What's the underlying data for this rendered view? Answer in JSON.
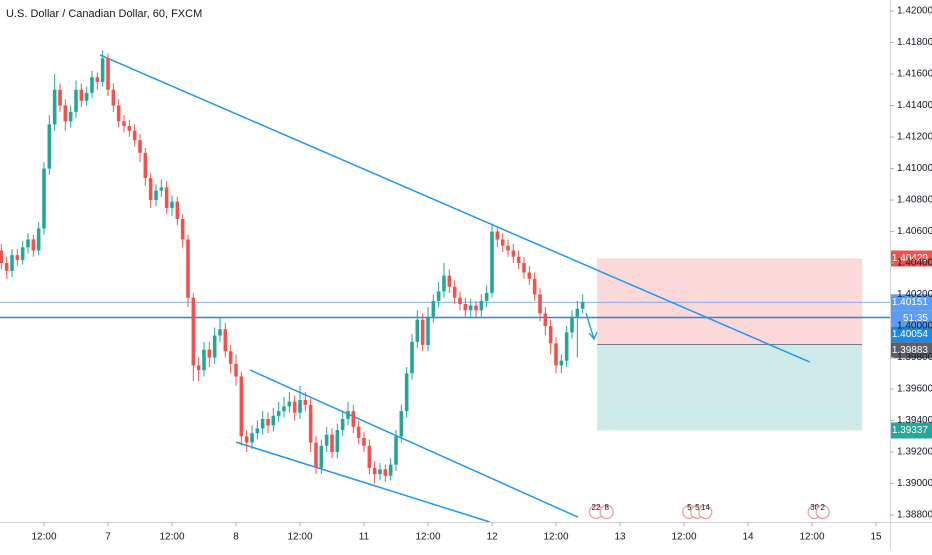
{
  "chart_data": {
    "type": "candlestick",
    "title": "U.S. Dollar / Canadian Dollar, 60, FXCM",
    "up_color": "#26a69a",
    "down_color": "#ef5350",
    "grid": true,
    "xlim": [
      -0.25,
      166.625
    ],
    "xticks": [
      {
        "value": 8,
        "label": "12:00"
      },
      {
        "value": 20,
        "label": "7"
      },
      {
        "value": 32,
        "label": "12:00"
      },
      {
        "value": 44,
        "label": "8"
      },
      {
        "value": 56,
        "label": "12:00"
      },
      {
        "value": 68,
        "label": "11"
      },
      {
        "value": 80,
        "label": "12:00"
      },
      {
        "value": 92,
        "label": "12"
      },
      {
        "value": 104,
        "label": "12:00"
      },
      {
        "value": 116,
        "label": "13"
      },
      {
        "value": 128,
        "label": "12:00"
      },
      {
        "value": 140,
        "label": "14"
      },
      {
        "value": 152,
        "label": "12:00"
      },
      {
        "value": 164,
        "label": "15"
      }
    ],
    "ylim": [
      1.38756,
      1.4207
    ],
    "yticks": [
      {
        "value": 1.388,
        "label": "1.38800"
      },
      {
        "value": 1.39,
        "label": "1.39000"
      },
      {
        "value": 1.392,
        "label": "1.39200"
      },
      {
        "value": 1.394,
        "label": "1.39400"
      },
      {
        "value": 1.396,
        "label": "1.39600"
      },
      {
        "value": 1.398,
        "label": "1.39800"
      },
      {
        "value": 1.4,
        "label": "1.40000"
      },
      {
        "value": 1.402,
        "label": "1.40200"
      },
      {
        "value": 1.404,
        "label": "1.40400"
      },
      {
        "value": 1.406,
        "label": "1.40600"
      },
      {
        "value": 1.408,
        "label": "1.40800"
      },
      {
        "value": 1.41,
        "label": "1.41000"
      },
      {
        "value": 1.412,
        "label": "1.41200"
      },
      {
        "value": 1.414,
        "label": "1.41400"
      },
      {
        "value": 1.416,
        "label": "1.41600"
      },
      {
        "value": 1.418,
        "label": "1.41800"
      },
      {
        "value": 1.42,
        "label": "1.42000"
      }
    ],
    "open": [
      1.4048,
      1.404,
      1.4035,
      1.4045,
      1.4042,
      1.405,
      1.4055,
      1.4048,
      1.4062,
      1.41,
      1.4128,
      1.415,
      1.414,
      1.413,
      1.4136,
      1.415,
      1.4143,
      1.4148,
      1.4158,
      1.4155,
      1.417,
      1.415,
      1.414,
      1.413,
      1.4127,
      1.4124,
      1.4118,
      1.411,
      1.4094,
      1.408,
      1.4086,
      1.4088,
      1.4075,
      1.4079,
      1.4068,
      1.4055,
      1.4018,
      1.3975,
      1.3972,
      1.3985,
      1.398,
      1.3994,
      1.3998,
      1.3984,
      1.3976,
      1.3968,
      1.393,
      1.3926,
      1.3932,
      1.3935,
      1.3941,
      1.3937,
      1.3943,
      1.3946,
      1.3949,
      1.3952,
      1.3945,
      1.3953,
      1.395,
      1.3926,
      1.391,
      1.3924,
      1.3931,
      1.392,
      1.3934,
      1.3941,
      1.3946,
      1.3936,
      1.3929,
      1.3924,
      1.391,
      1.3906,
      1.3909,
      1.3905,
      1.3912,
      1.393,
      1.3946,
      1.397,
      1.399,
      1.4004,
      1.3988,
      1.4006,
      1.4016,
      1.4022,
      1.4032,
      1.4025,
      1.4018,
      1.4014,
      1.401,
      1.4013,
      1.401,
      1.4016,
      1.4021,
      1.406,
      1.4055,
      1.4051,
      1.4048,
      1.4044,
      1.404,
      1.4034,
      1.403,
      1.402,
      1.4008,
      1.4,
      1.3989,
      1.3975,
      1.3978,
      1.3996,
      1.4006,
      1.4011
    ],
    "high": [
      1.4052,
      1.4044,
      1.4049,
      1.4049,
      1.4054,
      1.4059,
      1.4058,
      1.4066,
      1.4104,
      1.4134,
      1.416,
      1.4154,
      1.4144,
      1.414,
      1.4156,
      1.4154,
      1.4152,
      1.4162,
      1.4161,
      1.4175,
      1.4173,
      1.4154,
      1.4144,
      1.4134,
      1.4131,
      1.4128,
      1.4122,
      1.4113,
      1.4097,
      1.409,
      1.4093,
      1.4092,
      1.4083,
      1.4082,
      1.4071,
      1.4058,
      1.4021,
      1.398,
      1.399,
      1.399,
      1.3999,
      1.4005,
      1.4002,
      1.3988,
      1.3982,
      1.3971,
      1.3934,
      1.3937,
      1.394,
      1.3946,
      1.3945,
      1.3948,
      1.3952,
      1.3955,
      1.3958,
      1.3956,
      1.3962,
      1.3958,
      1.3954,
      1.393,
      1.3928,
      1.3936,
      1.3935,
      1.3938,
      1.3946,
      1.3952,
      1.395,
      1.394,
      1.3933,
      1.3928,
      1.3914,
      1.3913,
      1.3912,
      1.3916,
      1.3934,
      1.395,
      1.3974,
      1.3995,
      1.401,
      1.4008,
      1.4012,
      1.402,
      1.4028,
      1.404,
      1.4036,
      1.4029,
      1.4022,
      1.4018,
      1.4017,
      1.4016,
      1.402,
      1.4026,
      1.4065,
      1.4063,
      1.4059,
      1.4055,
      1.4052,
      1.4048,
      1.4044,
      1.4038,
      1.4034,
      1.4024,
      1.4012,
      1.4004,
      1.3993,
      1.3982,
      1.4,
      1.401,
      1.4016,
      1.402
    ],
    "low": [
      1.4036,
      1.403,
      1.4031,
      1.4038,
      1.4039,
      1.4046,
      1.4044,
      1.4045,
      1.4058,
      1.4096,
      1.4124,
      1.4136,
      1.4124,
      1.4126,
      1.4132,
      1.4139,
      1.414,
      1.4145,
      1.415,
      1.4152,
      1.4146,
      1.4136,
      1.4126,
      1.4123,
      1.412,
      1.4114,
      1.4104,
      1.4089,
      1.4075,
      1.4076,
      1.4082,
      1.4071,
      1.407,
      1.4064,
      1.405,
      1.4012,
      1.3965,
      1.3965,
      1.3968,
      1.3974,
      1.3976,
      1.399,
      1.398,
      1.397,
      1.3962,
      1.3924,
      1.392,
      1.3922,
      1.3928,
      1.3931,
      1.3932,
      1.3933,
      1.3939,
      1.3942,
      1.3945,
      1.394,
      1.3941,
      1.3946,
      1.392,
      1.3906,
      1.3906,
      1.392,
      1.3916,
      1.3916,
      1.393,
      1.3937,
      1.3932,
      1.3925,
      1.392,
      1.3906,
      1.39,
      1.3902,
      1.3901,
      1.3902,
      1.3908,
      1.3926,
      1.3942,
      1.3966,
      1.3986,
      1.3984,
      1.3984,
      1.4002,
      1.4012,
      1.4018,
      1.4021,
      1.4014,
      1.401,
      1.4006,
      1.4006,
      1.4006,
      1.4006,
      1.4012,
      1.4018,
      1.405,
      1.4047,
      1.4044,
      1.404,
      1.4036,
      1.403,
      1.4026,
      1.4016,
      1.4003,
      1.3994,
      1.3982,
      1.397,
      1.397,
      1.3974,
      1.3992,
      1.398,
      1.4008
    ],
    "close": [
      1.404,
      1.4035,
      1.4045,
      1.4042,
      1.405,
      1.4055,
      1.4048,
      1.4062,
      1.41,
      1.4128,
      1.415,
      1.414,
      1.413,
      1.4136,
      1.415,
      1.4143,
      1.4148,
      1.4158,
      1.4155,
      1.417,
      1.415,
      1.414,
      1.413,
      1.4127,
      1.4124,
      1.4118,
      1.411,
      1.4094,
      1.408,
      1.4086,
      1.4088,
      1.4075,
      1.4079,
      1.4068,
      1.4055,
      1.4018,
      1.3975,
      1.3972,
      1.3985,
      1.398,
      1.3994,
      1.3998,
      1.3984,
      1.3976,
      1.3968,
      1.393,
      1.3926,
      1.3932,
      1.3935,
      1.3941,
      1.3937,
      1.3943,
      1.3946,
      1.3949,
      1.3952,
      1.3945,
      1.3953,
      1.395,
      1.3926,
      1.391,
      1.3924,
      1.3931,
      1.392,
      1.3934,
      1.3941,
      1.3946,
      1.3936,
      1.3929,
      1.3924,
      1.391,
      1.3906,
      1.3909,
      1.3905,
      1.3912,
      1.393,
      1.3946,
      1.397,
      1.399,
      1.4004,
      1.3988,
      1.4006,
      1.4016,
      1.4022,
      1.4032,
      1.4025,
      1.4018,
      1.4014,
      1.401,
      1.4013,
      1.401,
      1.4016,
      1.4021,
      1.406,
      1.4055,
      1.4051,
      1.4048,
      1.4044,
      1.404,
      1.4034,
      1.403,
      1.402,
      1.4008,
      1.4,
      1.3989,
      1.3975,
      1.3978,
      1.3996,
      1.4006,
      1.4011,
      1.4015
    ],
    "trendlines": [
      {
        "x": [
          18.5,
          151.6
        ],
        "y": [
          1.41721,
          1.39771
        ]
      },
      {
        "x": [
          46.6,
          108.1
        ],
        "y": [
          1.39721,
          1.38787
        ]
      },
      {
        "x": [
          44.0,
          91.6
        ],
        "y": [
          1.39263,
          1.38756
        ]
      }
    ],
    "position": {
      "start": 111.7,
      "end": 161.4,
      "stop": {
        "value": 1.40429,
        "label": "1.40429"
      },
      "entry": {
        "value": 1.39883,
        "label": "1.39883"
      },
      "target": {
        "value": 1.39337,
        "label": "1.39337"
      }
    },
    "hlines": [
      {
        "value": 1.40151,
        "label": "1.40151",
        "color": "#5b9cf6"
      },
      {
        "value": 1.40054,
        "label": "1.40054",
        "color": "#1e88e5"
      }
    ],
    "countdown": "51:35",
    "events": [
      {
        "x": 111.5,
        "label": "22"
      },
      {
        "x": 113.5,
        "label": "8"
      },
      {
        "x": 129.0,
        "label": "5"
      },
      {
        "x": 130.5,
        "label": "5"
      },
      {
        "x": 132.0,
        "label": "14"
      },
      {
        "x": 152.5,
        "label": "30"
      },
      {
        "x": 154.0,
        "label": "2"
      }
    ]
  }
}
